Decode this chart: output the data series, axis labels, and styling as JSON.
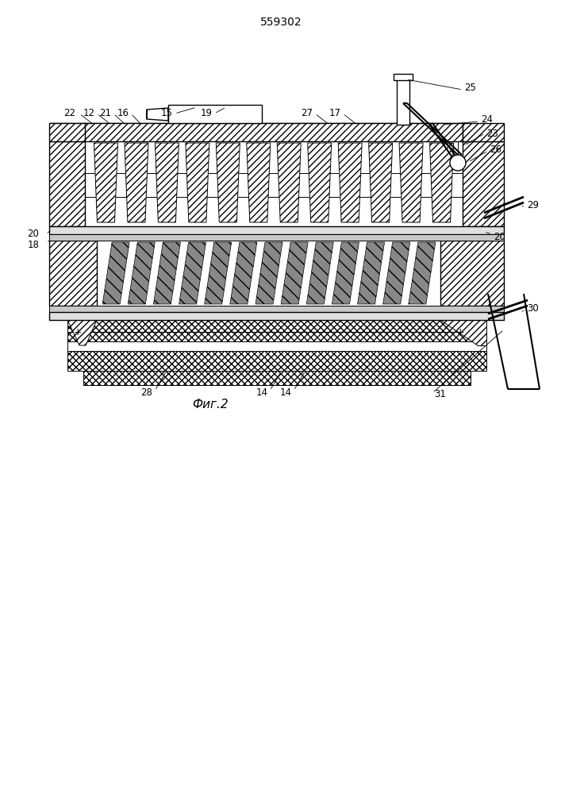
{
  "title": "559302",
  "caption": "Фиг.2",
  "bg_color": "#ffffff",
  "line_color": "#000000",
  "title_fontsize": 10,
  "caption_fontsize": 11,
  "label_fontsize": 8.5
}
